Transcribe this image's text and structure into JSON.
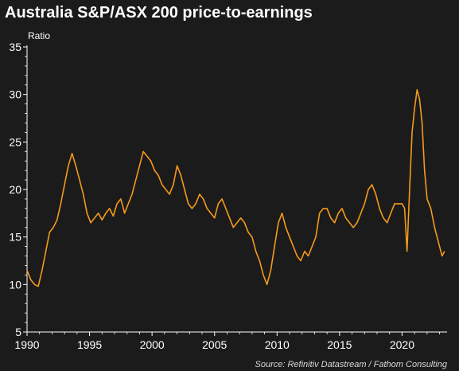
{
  "chart_data": {
    "type": "line",
    "title": "Australia S&P/ASX 200 price-to-earnings",
    "ylabel": "Ratio",
    "xlabel": "",
    "source": "Source: Refinitiv Datastream / Fathom Consulting",
    "xlim": [
      1990,
      2023.6
    ],
    "ylim": [
      5,
      35
    ],
    "x_ticks": [
      1990,
      1995,
      2000,
      2005,
      2010,
      2015,
      2020
    ],
    "y_ticks": [
      5,
      10,
      15,
      20,
      25,
      30,
      35
    ],
    "grid": false,
    "line_color": "#f59a1a",
    "series": [
      {
        "x": [
          1990.0,
          1990.3,
          1990.6,
          1990.9,
          1991.2,
          1991.5,
          1991.8,
          1992.1,
          1992.4,
          1992.7,
          1993.0,
          1993.3,
          1993.6,
          1993.9,
          1994.2,
          1994.5,
          1994.8,
          1995.1,
          1995.4,
          1995.7,
          1996.0,
          1996.3,
          1996.6,
          1996.9,
          1997.2,
          1997.5,
          1997.8,
          1998.1,
          1998.4,
          1998.7,
          1999.0,
          1999.3,
          1999.6,
          1999.9,
          2000.2,
          2000.5,
          2000.8,
          2001.1,
          2001.4,
          2001.7,
          2002.0,
          2002.3,
          2002.6,
          2002.9,
          2003.2,
          2003.5,
          2003.8,
          2004.1,
          2004.4,
          2004.7,
          2005.0,
          2005.3,
          2005.6,
          2005.9,
          2006.2,
          2006.5,
          2006.8,
          2007.1,
          2007.4,
          2007.7,
          2008.0,
          2008.3,
          2008.6,
          2008.9,
          2009.2,
          2009.5,
          2009.8,
          2010.1,
          2010.4,
          2010.7,
          2011.0,
          2011.3,
          2011.6,
          2011.9,
          2012.2,
          2012.5,
          2012.8,
          2013.1,
          2013.4,
          2013.7,
          2014.0,
          2014.3,
          2014.6,
          2014.9,
          2015.2,
          2015.5,
          2015.8,
          2016.1,
          2016.4,
          2016.7,
          2017.0,
          2017.3,
          2017.6,
          2017.9,
          2018.2,
          2018.5,
          2018.8,
          2019.1,
          2019.4,
          2019.7,
          2020.0,
          2020.2,
          2020.4,
          2020.6,
          2020.8,
          2021.0,
          2021.2,
          2021.4,
          2021.6,
          2021.8,
          2022.0,
          2022.3,
          2022.6,
          2022.9,
          2023.2,
          2023.4
        ],
        "values": [
          11.5,
          10.5,
          10.0,
          9.8,
          11.5,
          13.5,
          15.5,
          16.0,
          16.8,
          18.5,
          20.5,
          22.5,
          23.8,
          22.5,
          21.0,
          19.5,
          17.5,
          16.5,
          17.0,
          17.5,
          16.8,
          17.5,
          18.0,
          17.2,
          18.5,
          19.0,
          17.5,
          18.5,
          19.5,
          21.0,
          22.5,
          24.0,
          23.5,
          23.0,
          22.0,
          21.5,
          20.5,
          20.0,
          19.5,
          20.5,
          22.5,
          21.5,
          20.0,
          18.5,
          18.0,
          18.5,
          19.5,
          19.0,
          18.0,
          17.5,
          17.0,
          18.5,
          19.0,
          18.0,
          17.0,
          16.0,
          16.5,
          17.0,
          16.5,
          15.5,
          15.0,
          13.5,
          12.5,
          11.0,
          10.0,
          11.5,
          14.0,
          16.5,
          17.5,
          16.0,
          15.0,
          14.0,
          13.0,
          12.5,
          13.5,
          13.0,
          14.0,
          15.0,
          17.5,
          18.0,
          18.0,
          17.0,
          16.5,
          17.5,
          18.0,
          17.0,
          16.5,
          16.0,
          16.5,
          17.5,
          18.5,
          20.0,
          20.5,
          19.5,
          18.0,
          17.0,
          16.5,
          17.5,
          18.5,
          18.5,
          18.5,
          18.0,
          13.5,
          20.0,
          26.0,
          28.5,
          30.5,
          29.5,
          27.0,
          22.0,
          19.0,
          18.0,
          16.0,
          14.5,
          13.0,
          13.5
        ]
      }
    ]
  }
}
